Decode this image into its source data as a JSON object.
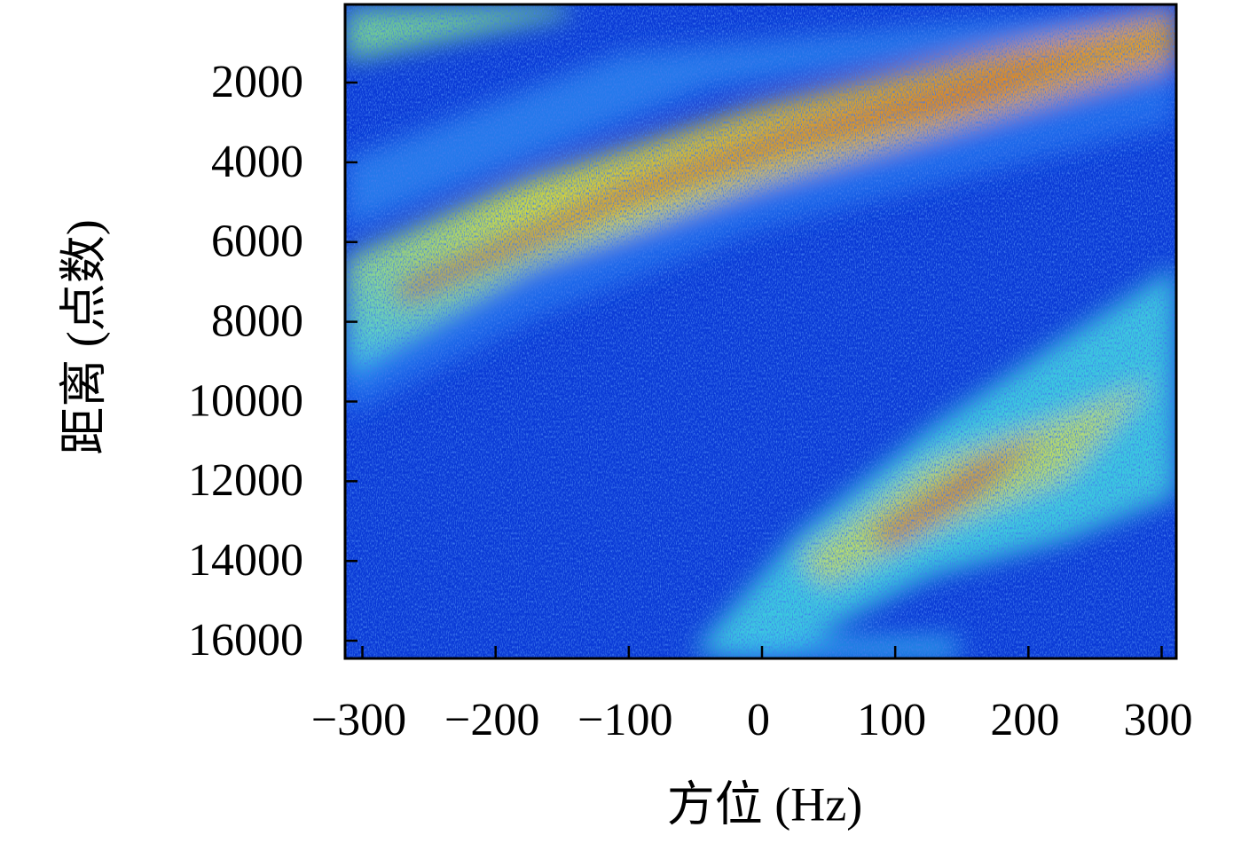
{
  "chart_data": {
    "type": "heatmap",
    "x_label": "方位 (Hz)",
    "y_label": "距离 (点数)",
    "xlim": [
      -313,
      311
    ],
    "xticks": [
      {
        "value": -300,
        "label": "−300"
      },
      {
        "value": -200,
        "label": "−200"
      },
      {
        "value": -100,
        "label": "−100"
      },
      0,
      100,
      200,
      300
    ],
    "ylim": [
      40,
      16445
    ],
    "y_inverted": true,
    "yticks": [
      2000,
      4000,
      6000,
      8000,
      10000,
      12000,
      14000,
      16000
    ],
    "colormap": "jet"
  }
}
